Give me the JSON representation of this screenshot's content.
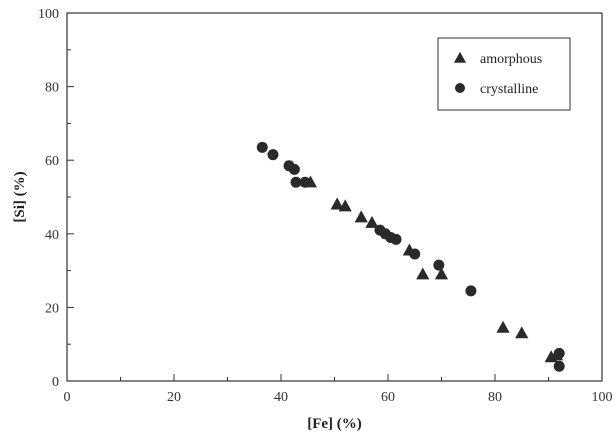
{
  "chart_data": {
    "type": "scatter",
    "xlabel": "[Fe] (%)",
    "ylabel": "[Si] (%)",
    "xlim": [
      0,
      100
    ],
    "ylim": [
      0,
      100
    ],
    "xticks": [
      "0",
      "20",
      "40",
      "60",
      "80",
      "100"
    ],
    "yticks": [
      "0",
      "20",
      "40",
      "60",
      "80",
      "100"
    ],
    "grid": false,
    "legend_position": "top-right",
    "series": [
      {
        "name": "amorphous",
        "marker": "triangle",
        "color": "#2a2a2a",
        "points": [
          [
            45.5,
            54.0
          ],
          [
            50.5,
            48.0
          ],
          [
            52.0,
            47.5
          ],
          [
            55.0,
            44.5
          ],
          [
            57.0,
            43.0
          ],
          [
            64.0,
            35.5
          ],
          [
            66.5,
            29.0
          ],
          [
            70.0,
            29.0
          ],
          [
            81.5,
            14.5
          ],
          [
            85.0,
            13.0
          ],
          [
            90.5,
            6.5
          ],
          [
            91.5,
            7.0
          ]
        ]
      },
      {
        "name": "crystalline",
        "marker": "circle",
        "color": "#2a2a2a",
        "points": [
          [
            36.5,
            63.5
          ],
          [
            38.5,
            61.5
          ],
          [
            41.5,
            58.5
          ],
          [
            42.5,
            57.5
          ],
          [
            42.8,
            54.0
          ],
          [
            44.5,
            54.0
          ],
          [
            58.5,
            41.0
          ],
          [
            59.5,
            40.0
          ],
          [
            60.5,
            39.0
          ],
          [
            61.5,
            38.5
          ],
          [
            65.0,
            34.5
          ],
          [
            69.5,
            31.5
          ],
          [
            75.5,
            24.5
          ],
          [
            92.0,
            7.5
          ],
          [
            92.0,
            4.0
          ]
        ]
      }
    ]
  }
}
